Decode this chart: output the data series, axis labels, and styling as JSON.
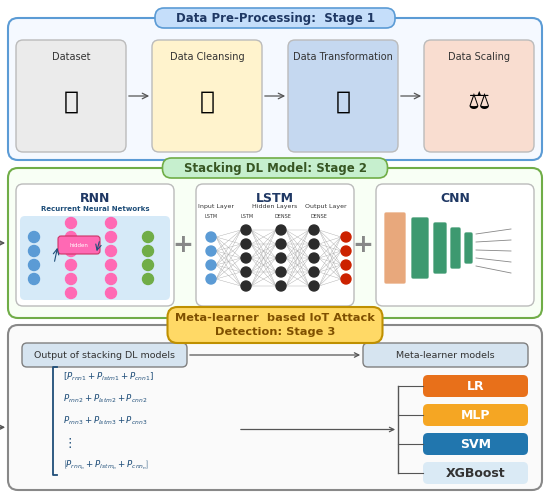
{
  "stage1_title": "Data Pre-Processing:  Stage 1",
  "stage2_title": "Stacking DL Model: Stage 2",
  "stage3_title": "Meta-learner  based IoT Attack\nDetection: Stage 3",
  "stage1_boxes": [
    "Dataset",
    "Data Cleansing",
    "Data Transformation",
    "Data Scaling"
  ],
  "stage2_boxes": [
    "RNN",
    "LSTM",
    "CNN"
  ],
  "stage3_left_boxes": [
    "Output of stacking DL models",
    "Meta-learner models"
  ],
  "stage3_ml_boxes": [
    "LR",
    "MLP",
    "SVM",
    "XGBoost"
  ],
  "stage3_ml_colors": [
    "#E8701A",
    "#F5A623",
    "#2176AE",
    "#DAEAF5"
  ],
  "stage3_ml_text_colors": [
    "#ffffff",
    "#ffffff",
    "#ffffff",
    "#333333"
  ],
  "bg_color": "#ffffff",
  "stage1_border": "#5B9BD5",
  "stage2_border": "#70AD47",
  "stage3_border": "#888888",
  "stage1_title_bg": "#C5DEFA",
  "stage2_title_bg": "#C6EFCE",
  "stage3_title_bg": "#FFD966",
  "stage1_bg": "#F5F9FF",
  "stage2_bg": "#F8FFF5",
  "stage3_bg": "#FAFAFA",
  "box1_color": "#EBEBEB",
  "box1_cleansing_color": "#FFF3CD",
  "box1_transform_color": "#C5D8F0",
  "box1_scaling_color": "#F9DDD0",
  "matrix_text_color": "#1F4E79",
  "arrow_color": "#555555"
}
